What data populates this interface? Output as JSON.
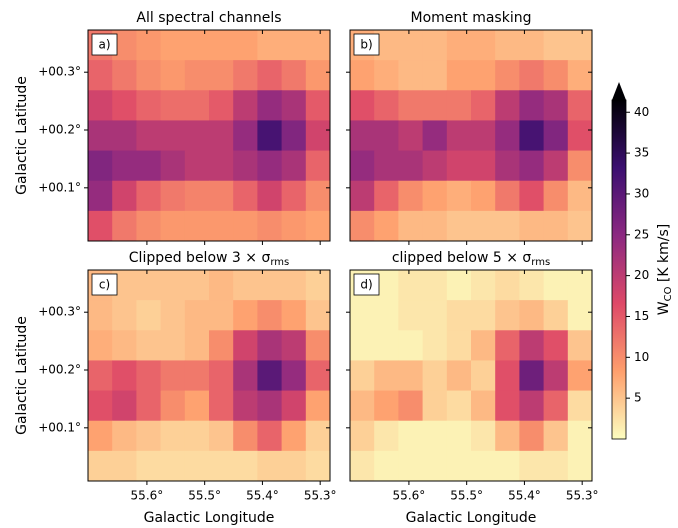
{
  "chart_data": [
    {
      "type": "heatmap",
      "title": "All spectral channels",
      "panel_label": "a)",
      "ylabel": "Galactic Latitude",
      "xlim": [
        55.702,
        55.283
      ],
      "ylim": [
        0.008,
        0.373
      ],
      "xticks": [
        55.6,
        55.5,
        55.4,
        55.3
      ],
      "yticks": [
        {
          "value": 0.1,
          "label": "+00.1°"
        },
        {
          "value": 0.2,
          "label": "+00.2°"
        },
        {
          "value": 0.3,
          "label": "+00.3°"
        }
      ],
      "values": [
        [
          12,
          10,
          9,
          8,
          8,
          8,
          8,
          7,
          7,
          7
        ],
        [
          14,
          12,
          10,
          9,
          10,
          10,
          12,
          14,
          12,
          9
        ],
        [
          18,
          16,
          14,
          13,
          13,
          15,
          20,
          24,
          22,
          15
        ],
        [
          22,
          22,
          20,
          20,
          20,
          20,
          24,
          32,
          26,
          18
        ],
        [
          26,
          24,
          24,
          22,
          20,
          20,
          22,
          24,
          22,
          14
        ],
        [
          24,
          18,
          14,
          12,
          11,
          11,
          14,
          18,
          14,
          10
        ],
        [
          16,
          12,
          10,
          9,
          9,
          9,
          9,
          10,
          9,
          8
        ]
      ]
    },
    {
      "type": "heatmap",
      "title": "Moment masking",
      "panel_label": "b)",
      "xlim": [
        55.702,
        55.283
      ],
      "ylim": [
        0.008,
        0.373
      ],
      "xticks": [
        55.6,
        55.5,
        55.4,
        55.3
      ],
      "yticks": [
        0.1,
        0.2,
        0.3
      ],
      "values": [
        [
          7,
          6,
          6,
          6,
          7,
          7,
          6,
          6,
          5,
          5
        ],
        [
          8,
          7,
          6,
          6,
          8,
          8,
          10,
          12,
          10,
          7
        ],
        [
          16,
          14,
          12,
          12,
          12,
          14,
          20,
          24,
          22,
          14
        ],
        [
          22,
          22,
          20,
          24,
          20,
          20,
          24,
          32,
          26,
          16
        ],
        [
          24,
          22,
          22,
          20,
          18,
          18,
          22,
          24,
          20,
          10
        ],
        [
          20,
          14,
          10,
          8,
          7,
          8,
          12,
          16,
          10,
          6
        ],
        [
          10,
          8,
          6,
          6,
          5,
          5,
          5,
          6,
          6,
          5
        ]
      ]
    },
    {
      "type": "heatmap",
      "title": "Clipped below 3 × σ",
      "title_sub": "rms",
      "panel_label": "c)",
      "ylabel": "Galactic Latitude",
      "xlabel": "Galactic Longitude",
      "xlim": [
        55.702,
        55.283
      ],
      "ylim": [
        0.008,
        0.373
      ],
      "xticks": [
        {
          "value": 55.6,
          "label": "55.6°"
        },
        {
          "value": 55.5,
          "label": "55.5°"
        },
        {
          "value": 55.4,
          "label": "55.4°"
        },
        {
          "value": 55.3,
          "label": "55.3°"
        }
      ],
      "yticks": [
        {
          "value": 0.1,
          "label": "+00.1°"
        },
        {
          "value": 0.2,
          "label": "+00.2°"
        },
        {
          "value": 0.3,
          "label": "+00.3°"
        }
      ],
      "values": [
        [
          6,
          5,
          5,
          5,
          5,
          6,
          5,
          5,
          5,
          4
        ],
        [
          6,
          5,
          4,
          5,
          6,
          6,
          8,
          10,
          8,
          5
        ],
        [
          7,
          6,
          5,
          5,
          6,
          10,
          18,
          22,
          20,
          10
        ],
        [
          14,
          16,
          14,
          12,
          12,
          14,
          22,
          30,
          24,
          14
        ],
        [
          16,
          18,
          14,
          10,
          8,
          14,
          20,
          22,
          18,
          8
        ],
        [
          8,
          6,
          5,
          4,
          4,
          5,
          10,
          14,
          8,
          4
        ],
        [
          4,
          4,
          3,
          3,
          3,
          3,
          3,
          4,
          4,
          3
        ]
      ]
    },
    {
      "type": "heatmap",
      "title": "clipped below 5 × σ",
      "title_sub": "rms",
      "panel_label": "d)",
      "xlabel": "Galactic Longitude",
      "xlim": [
        55.702,
        55.283
      ],
      "ylim": [
        0.008,
        0.373
      ],
      "xticks": [
        {
          "value": 55.6,
          "label": "55.6°"
        },
        {
          "value": 55.5,
          "label": "55.5°"
        },
        {
          "value": 55.4,
          "label": "55.4°"
        },
        {
          "value": 55.3,
          "label": "55.3°"
        }
      ],
      "yticks": [
        0.1,
        0.2,
        0.3
      ],
      "values": [
        [
          1,
          1,
          2,
          2,
          1,
          2,
          3,
          2,
          1,
          1
        ],
        [
          1,
          1,
          2,
          2,
          3,
          3,
          5,
          6,
          4,
          1
        ],
        [
          1,
          1,
          1,
          2,
          3,
          6,
          14,
          20,
          16,
          5
        ],
        [
          4,
          6,
          6,
          4,
          6,
          4,
          16,
          28,
          20,
          8
        ],
        [
          6,
          8,
          10,
          4,
          3,
          6,
          16,
          20,
          14,
          3
        ],
        [
          4,
          2,
          1,
          1,
          1,
          2,
          6,
          10,
          5,
          1
        ],
        [
          2,
          1,
          1,
          1,
          1,
          1,
          1,
          2,
          2,
          1
        ]
      ]
    }
  ],
  "colorbar": {
    "label": "W",
    "label_sub": "CO",
    "label_unit": " [K km/s]",
    "lim": [
      0,
      41.5
    ],
    "ticks": [
      5,
      10,
      15,
      20,
      25,
      30,
      35,
      40
    ],
    "colormap": [
      "#fcfdbf",
      "#fe9f6d",
      "#de4968",
      "#8c2981",
      "#3b0f70",
      "#000004"
    ]
  }
}
